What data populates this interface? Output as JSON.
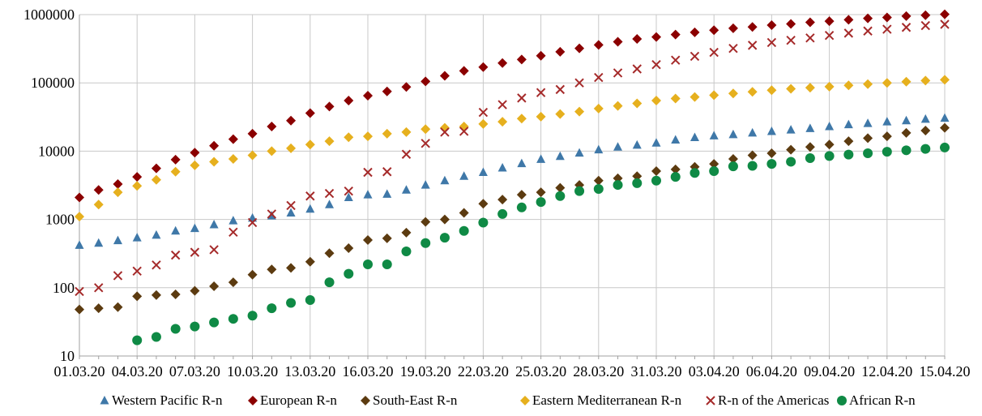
{
  "chart_data": {
    "type": "scatter",
    "yscale": "log",
    "ylim": [
      10,
      1000000
    ],
    "grid": "horizontal",
    "legend_position": "bottom",
    "y_ticks": [
      10,
      100,
      1000,
      10000,
      100000,
      1000000
    ],
    "y_tick_labels": [
      "10",
      "100",
      "1000",
      "10000",
      "100000",
      "1000000"
    ],
    "x_tick_labels": [
      "01.03.20",
      "04.03.20",
      "07.03.20",
      "10.03.20",
      "13.03.20",
      "16.03.20",
      "19.03.20",
      "22.03.20",
      "25.03.20",
      "28.03.20",
      "31.03.20",
      "03.04.20",
      "06.04.20",
      "09.04.20",
      "12.04.20",
      "15.04.20"
    ],
    "x_dates": [
      "01.03.20",
      "02.03.20",
      "03.03.20",
      "04.03.20",
      "05.03.20",
      "06.03.20",
      "07.03.20",
      "08.03.20",
      "09.03.20",
      "10.03.20",
      "11.03.20",
      "12.03.20",
      "13.03.20",
      "14.03.20",
      "15.03.20",
      "16.03.20",
      "17.03.20",
      "18.03.20",
      "19.03.20",
      "20.03.20",
      "21.03.20",
      "22.03.20",
      "23.03.20",
      "24.03.20",
      "25.03.20",
      "26.03.20",
      "27.03.20",
      "28.03.20",
      "29.03.20",
      "30.03.20",
      "31.03.20",
      "01.04.20",
      "02.04.20",
      "03.04.20",
      "04.04.20",
      "05.04.20",
      "06.04.20",
      "07.04.20",
      "08.04.20",
      "09.04.20",
      "10.04.20",
      "11.04.20",
      "12.04.20",
      "13.04.20",
      "14.04.20",
      "15.04.20"
    ],
    "series": [
      {
        "name": "Western Pacific R-n",
        "marker": "triangle",
        "color": "#3f78a8",
        "values": [
          420,
          450,
          490,
          540,
          590,
          680,
          740,
          840,
          960,
          1050,
          1130,
          1250,
          1420,
          1650,
          2100,
          2300,
          2350,
          2700,
          3200,
          3700,
          4300,
          4900,
          5700,
          6600,
          7600,
          8400,
          9400,
          10500,
          11500,
          12300,
          13200,
          14600,
          15900,
          16800,
          17500,
          18500,
          19500,
          20500,
          21500,
          23000,
          24500,
          25500,
          27000,
          28000,
          29500,
          30500
        ]
      },
      {
        "name": "European R-n",
        "marker": "diamond",
        "color": "#8b0000",
        "values": [
          2100,
          2700,
          3300,
          4200,
          5600,
          7500,
          9500,
          12000,
          15000,
          18000,
          23000,
          28000,
          36000,
          45000,
          55000,
          65000,
          75000,
          87000,
          105000,
          127000,
          150000,
          170000,
          195000,
          220000,
          250000,
          285000,
          320000,
          360000,
          400000,
          440000,
          470000,
          510000,
          550000,
          590000,
          630000,
          660000,
          700000,
          730000,
          770000,
          800000,
          840000,
          880000,
          910000,
          950000,
          980000,
          1010000
        ]
      },
      {
        "name": "South-East R-n",
        "marker": "diamond",
        "color": "#5c3b10",
        "values": [
          48,
          50,
          52,
          75,
          78,
          80,
          90,
          105,
          120,
          155,
          185,
          195,
          240,
          320,
          380,
          500,
          530,
          640,
          920,
          1000,
          1250,
          1700,
          1950,
          2300,
          2500,
          2900,
          3200,
          3700,
          4000,
          4300,
          5100,
          5400,
          5900,
          6500,
          7700,
          8700,
          9300,
          10500,
          11500,
          12500,
          14000,
          15500,
          16500,
          18500,
          20000,
          22000
        ]
      },
      {
        "name": "Eastern Mediterranean R-n",
        "marker": "diamond",
        "color": "#e6b01e",
        "values": [
          1100,
          1650,
          2500,
          3100,
          3800,
          5000,
          6200,
          7000,
          7700,
          8700,
          10000,
          11000,
          12500,
          14000,
          16000,
          16500,
          18000,
          19000,
          21000,
          22000,
          23000,
          25000,
          27000,
          30000,
          32000,
          35000,
          38000,
          42000,
          46000,
          50000,
          55000,
          59000,
          62000,
          66000,
          70000,
          74000,
          78000,
          82000,
          85000,
          88000,
          92000,
          96000,
          100000,
          104000,
          108000,
          111000
        ]
      },
      {
        "name": "R-n of the Americas",
        "marker": "x",
        "color": "#a52a2a",
        "values": [
          88,
          100,
          150,
          175,
          215,
          300,
          330,
          360,
          650,
          900,
          1200,
          1600,
          2200,
          2400,
          2600,
          4900,
          5000,
          9000,
          13000,
          19000,
          19500,
          37000,
          48000,
          60000,
          72000,
          80000,
          100000,
          120000,
          140000,
          160000,
          185000,
          215000,
          245000,
          280000,
          320000,
          355000,
          390000,
          420000,
          455000,
          495000,
          535000,
          575000,
          610000,
          650000,
          690000,
          720000
        ]
      },
      {
        "name": "African R-n",
        "marker": "circle",
        "color": "#0f8a45",
        "values": [
          null,
          null,
          null,
          17,
          19,
          25,
          27,
          31,
          35,
          39,
          50,
          60,
          66,
          120,
          160,
          220,
          220,
          340,
          450,
          540,
          680,
          900,
          1200,
          1500,
          1800,
          2200,
          2600,
          2800,
          3200,
          3400,
          3700,
          4200,
          4800,
          5100,
          6000,
          6100,
          6500,
          7000,
          7900,
          8500,
          8900,
          9300,
          9800,
          10300,
          10800,
          11300
        ]
      }
    ]
  }
}
